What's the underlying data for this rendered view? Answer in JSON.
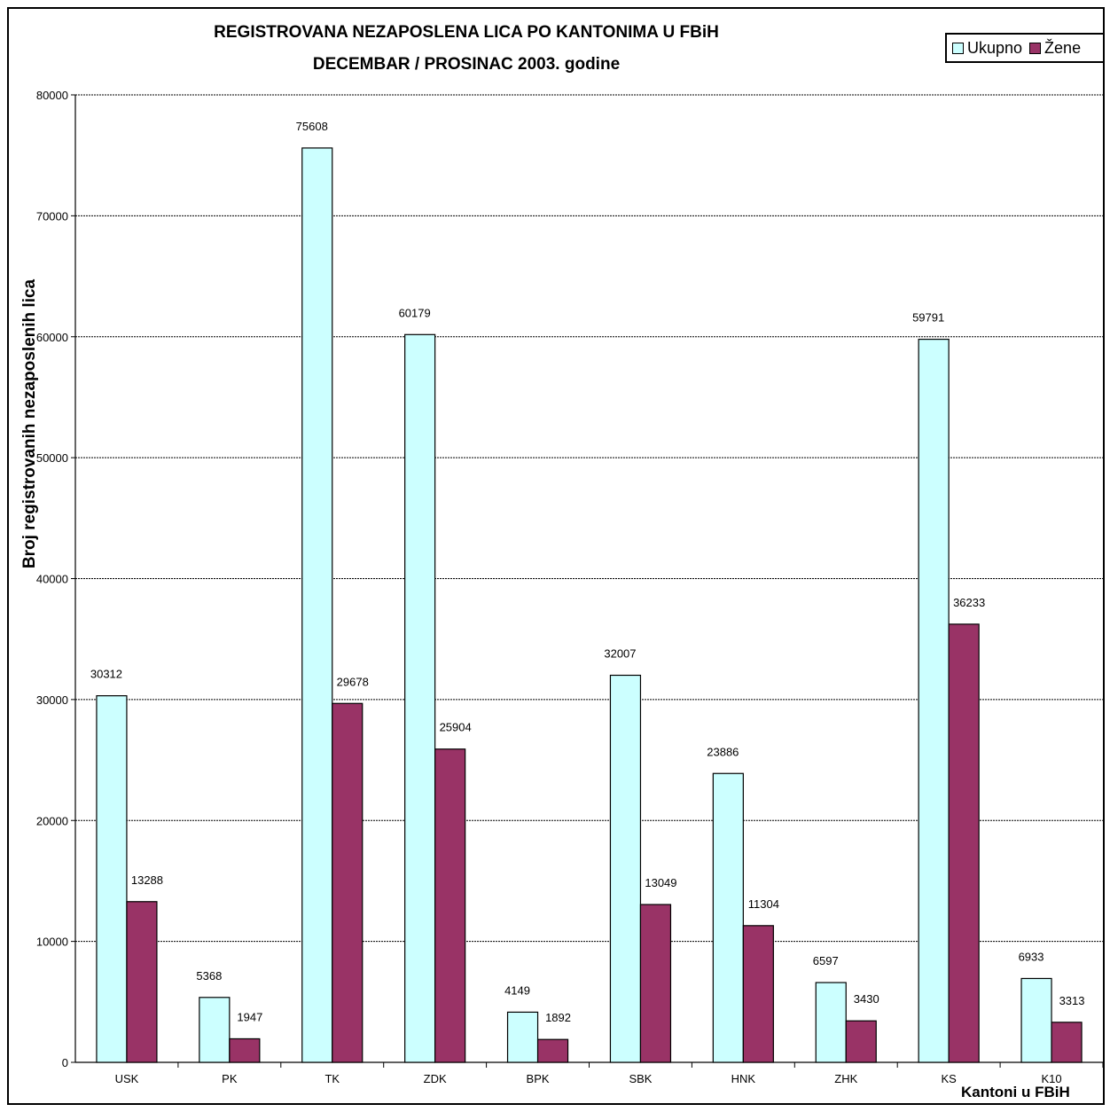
{
  "chart_data": {
    "type": "bar",
    "title": "REGISTROVANA NEZAPOSLENA LICA PO KANTONIMA U FBiH",
    "subtitle": "DECEMBAR / PROSINAC  2003. godine",
    "xlabel": "Kantoni u FBiH",
    "ylabel": "Broj registrovanih nezaposlenih lica",
    "ylim": [
      0,
      80000
    ],
    "yticks": [
      0,
      10000,
      20000,
      30000,
      40000,
      50000,
      60000,
      70000,
      80000
    ],
    "grid": true,
    "legend_position": "top-right",
    "categories": [
      "USK",
      "PK",
      "TK",
      "ZDK",
      "BPK",
      "SBK",
      "HNK",
      "ZHK",
      "KS",
      "K10"
    ],
    "series": [
      {
        "name": "Ukupno",
        "color": "#ccffff",
        "values": [
          30312,
          5368,
          75608,
          60179,
          4149,
          32007,
          23886,
          6597,
          59791,
          6933
        ]
      },
      {
        "name": "Žene",
        "color": "#993366",
        "values": [
          13288,
          1947,
          29678,
          25904,
          1892,
          13049,
          11304,
          3430,
          36233,
          3313
        ]
      }
    ]
  }
}
